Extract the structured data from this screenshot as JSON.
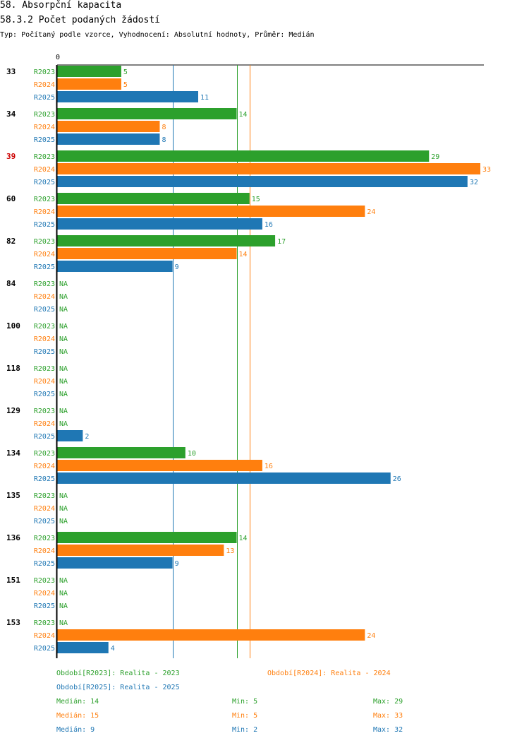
{
  "title": "58. Absorpční kapacita",
  "subtitle": "58.3.2 Počet podaných žádostí",
  "type_line": "Typ: Počítaný podle vzorce, Vyhodnocení: Absolutní hodnoty, Průměr: Medián",
  "colors": {
    "R2023": "#2ca02c",
    "R2024": "#ff7f0e",
    "R2025": "#1f77b4",
    "highlight": "#cc0000",
    "text": "#000000"
  },
  "chart_data": {
    "type": "bar",
    "orientation": "horizontal",
    "xlim": [
      0,
      33
    ],
    "x_tick_label": "0",
    "highlight_category": "39",
    "categories": [
      "33",
      "34",
      "39",
      "60",
      "82",
      "84",
      "100",
      "118",
      "129",
      "134",
      "135",
      "136",
      "151",
      "153"
    ],
    "series": [
      {
        "name": "R2023",
        "values": [
          5,
          14,
          29,
          15,
          17,
          null,
          null,
          null,
          null,
          10,
          null,
          14,
          null,
          null
        ]
      },
      {
        "name": "R2024",
        "values": [
          5,
          8,
          33,
          24,
          14,
          null,
          null,
          null,
          null,
          16,
          null,
          13,
          null,
          24
        ]
      },
      {
        "name": "R2025",
        "values": [
          11,
          8,
          32,
          16,
          9,
          null,
          null,
          null,
          2,
          26,
          null,
          9,
          null,
          4
        ]
      }
    ],
    "na_label": "NA",
    "reference_lines": [
      {
        "series": "R2023",
        "value": 14
      },
      {
        "series": "R2024",
        "value": 15
      },
      {
        "series": "R2025",
        "value": 9
      }
    ]
  },
  "legend": {
    "R2023": "Období[R2023]: Realita - 2023",
    "R2024": "Období[R2024]: Realita - 2024",
    "R2025": "Období[R2025]: Realita - 2025"
  },
  "stats": [
    {
      "series": "R2023",
      "median": "Medián: 14",
      "min": "Min: 5",
      "max": "Max: 29"
    },
    {
      "series": "R2024",
      "median": "Medián: 15",
      "min": "Min: 5",
      "max": "Max: 33"
    },
    {
      "series": "R2025",
      "median": "Medián: 9",
      "min": "Min: 2",
      "max": "Max: 32"
    }
  ]
}
